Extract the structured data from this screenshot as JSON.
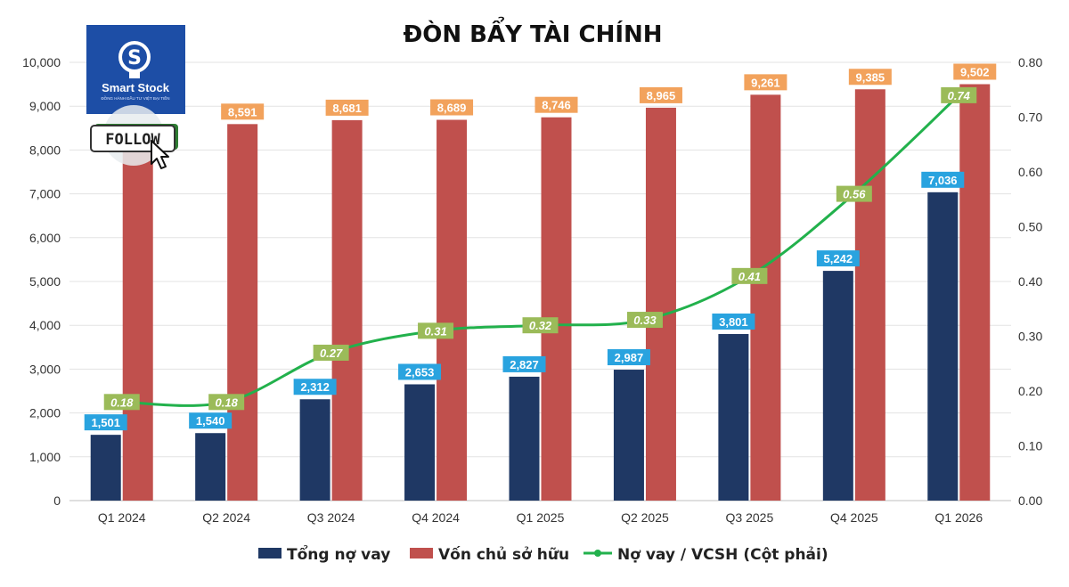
{
  "logo": {
    "brand": "Smart Stock",
    "tagline": "ĐỒNG HÀNH ĐẦU TƯ VIỆT BẠI TIỀN",
    "follow_label": "FOLLOW",
    "icon": "lightbulb-dollar-icon",
    "cursor_icon": "cursor-arrow-icon"
  },
  "chart_data": {
    "type": "bar",
    "title": "ĐÒN BẨY TÀI CHÍNH",
    "categories": [
      "Q1 2024",
      "Q2 2024",
      "Q3 2024",
      "Q4 2024",
      "Q1 2025",
      "Q2 2025",
      "Q3 2025",
      "Q4 2025",
      "Q1 2026"
    ],
    "series": [
      {
        "name": "Tổng nợ vay",
        "type": "bar",
        "axis": "left",
        "color": "#1f3864",
        "values": [
          1501,
          1540,
          2312,
          2653,
          2827,
          2987,
          3801,
          5242,
          7036
        ],
        "labels": [
          "1,501",
          "1,540",
          "2,312",
          "2,653",
          "2,827",
          "2,987",
          "3,801",
          "5,242",
          "7,036"
        ],
        "label_color": "#29a3df"
      },
      {
        "name": "Vốn chủ sở hữu",
        "type": "bar",
        "axis": "left",
        "color": "#c0504d",
        "values": [
          8591,
          8591,
          8681,
          8689,
          8746,
          8965,
          9261,
          9385,
          9502
        ],
        "labels": [
          "",
          "8,591",
          "8,681",
          "8,689",
          "8,746",
          "8,965",
          "9,261",
          "9,385",
          "9,502"
        ],
        "label_color": "#f2a25c"
      },
      {
        "name": "Nợ vay / VCSH (Cột phải)",
        "type": "line",
        "axis": "right",
        "color": "#22b14c",
        "values": [
          0.18,
          0.18,
          0.27,
          0.31,
          0.32,
          0.33,
          0.41,
          0.56,
          0.74
        ],
        "labels": [
          "0.18",
          "0.18",
          "0.27",
          "0.31",
          "0.32",
          "0.33",
          "0.41",
          "0.56",
          "0.74"
        ],
        "label_color": "#9bbb59"
      }
    ],
    "y_left": {
      "min": 0,
      "max": 10000,
      "ticks": [
        "0",
        "1,000",
        "2,000",
        "3,000",
        "4,000",
        "5,000",
        "6,000",
        "7,000",
        "8,000",
        "9,000",
        "10,000"
      ]
    },
    "y_right": {
      "min": 0,
      "max": 0.8,
      "ticks": [
        "0.00",
        "0.10",
        "0.20",
        "0.30",
        "0.40",
        "0.50",
        "0.60",
        "0.70",
        "0.80"
      ]
    },
    "grid": true,
    "legend": "bottom"
  }
}
